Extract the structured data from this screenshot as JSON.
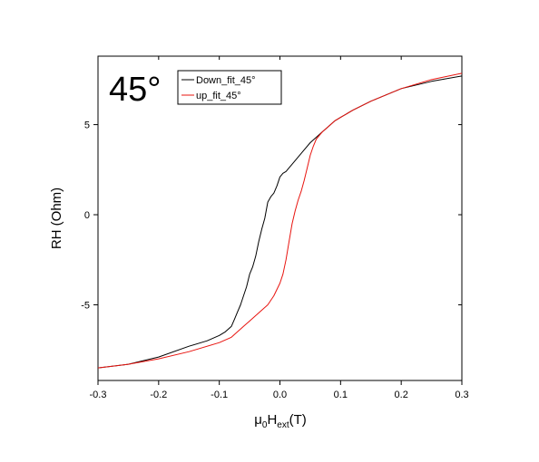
{
  "chart_data": {
    "type": "line",
    "title": "",
    "annotation": "45°",
    "xlabel": {
      "prefix": "μ",
      "sub1": "0",
      "mid": "H",
      "sub2": "ext",
      "suffix": "(T)"
    },
    "ylabel": "RH (Ohm)",
    "xlim": [
      -0.3,
      0.3
    ],
    "ylim": [
      -9.2,
      8.8
    ],
    "xticks": [
      -0.3,
      -0.2,
      -0.1,
      0.0,
      0.1,
      0.2,
      0.3
    ],
    "xtick_labels": [
      "-0.3",
      "-0.2",
      "-0.1",
      "0.0",
      "0.1",
      "0.2",
      "0.3"
    ],
    "yticks": [
      -5,
      0,
      5
    ],
    "ytick_labels": [
      "-5",
      "0",
      "5"
    ],
    "grid": false,
    "legend_position": "top-left",
    "series": [
      {
        "name": "Down_fit_45°",
        "color": "#000000",
        "x": [
          -0.3,
          -0.25,
          -0.2,
          -0.15,
          -0.12,
          -0.1,
          -0.09,
          -0.08,
          -0.075,
          -0.07,
          -0.065,
          -0.06,
          -0.055,
          -0.05,
          -0.045,
          -0.04,
          -0.035,
          -0.03,
          -0.025,
          -0.02,
          -0.015,
          -0.01,
          -0.005,
          0.0,
          0.005,
          0.01,
          0.015,
          0.02,
          0.03,
          0.04,
          0.05,
          0.06,
          0.07,
          0.08,
          0.09,
          0.1,
          0.12,
          0.15,
          0.2,
          0.25,
          0.3
        ],
        "y": [
          -8.5,
          -8.3,
          -7.9,
          -7.3,
          -7.0,
          -6.7,
          -6.5,
          -6.2,
          -5.8,
          -5.4,
          -5.0,
          -4.5,
          -4.0,
          -3.3,
          -2.9,
          -2.3,
          -1.5,
          -0.8,
          -0.2,
          0.7,
          1.0,
          1.2,
          1.6,
          2.1,
          2.3,
          2.4,
          2.6,
          2.8,
          3.2,
          3.6,
          4.0,
          4.3,
          4.6,
          4.9,
          5.2,
          5.4,
          5.8,
          6.3,
          7.0,
          7.4,
          7.7
        ]
      },
      {
        "name": "up_fit_45°",
        "color": "#e8140f",
        "x": [
          -0.3,
          -0.25,
          -0.2,
          -0.15,
          -0.1,
          -0.08,
          -0.07,
          -0.06,
          -0.05,
          -0.04,
          -0.03,
          -0.02,
          -0.01,
          0.0,
          0.005,
          0.01,
          0.015,
          0.02,
          0.025,
          0.03,
          0.035,
          0.04,
          0.045,
          0.05,
          0.055,
          0.06,
          0.065,
          0.07,
          0.08,
          0.09,
          0.1,
          0.12,
          0.15,
          0.2,
          0.25,
          0.3
        ],
        "y": [
          -8.5,
          -8.3,
          -8.0,
          -7.6,
          -7.1,
          -6.8,
          -6.5,
          -6.2,
          -5.9,
          -5.6,
          -5.3,
          -5.0,
          -4.5,
          -3.8,
          -3.3,
          -2.5,
          -1.5,
          -0.5,
          0.2,
          0.8,
          1.3,
          1.9,
          2.6,
          3.3,
          3.8,
          4.2,
          4.4,
          4.6,
          4.9,
          5.2,
          5.4,
          5.8,
          6.3,
          7.0,
          7.5,
          7.85
        ]
      }
    ]
  }
}
